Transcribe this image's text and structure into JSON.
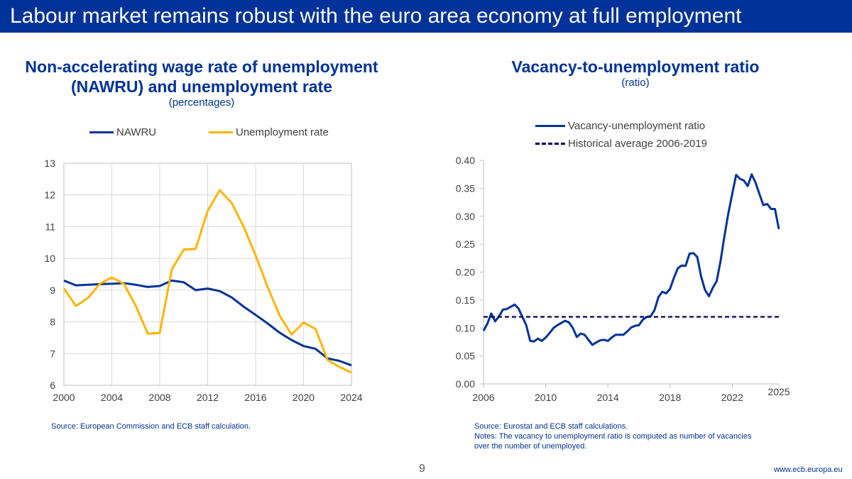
{
  "slide": {
    "title": "Labour market remains robust with the euro area economy at full employment",
    "page_number": "9",
    "url": "www.ecb.europa.eu",
    "brand_color": "#003299"
  },
  "left_chart": {
    "title_line1": "Non-accelerating wage rate of unemployment",
    "title_line2": "(NAWRU) and unemployment rate",
    "subtitle": "(percentages)",
    "source": "Source: European Commission and ECB staff calculation."
  },
  "right_chart": {
    "title": "Vacancy-to-unemployment ratio",
    "subtitle": "(ratio)",
    "source": "Source: Eurostat and ECB staff calculations.",
    "notes_line1": "Notes: The vacancy to unemployment ratio is computed as number of vacancies",
    "notes_line2": "over the number of unemployed."
  },
  "chart_data": [
    {
      "type": "line",
      "title": "Non-accelerating wage rate of unemployment (NAWRU) and unemployment rate",
      "subtitle": "(percentages)",
      "xlabel": "",
      "ylabel": "",
      "xlim": [
        2000,
        2024
      ],
      "ylim": [
        6,
        13
      ],
      "x_ticks": [
        "2000",
        "2004",
        "2008",
        "2012",
        "2016",
        "2020",
        "2024"
      ],
      "y_ticks": [
        "6",
        "7",
        "8",
        "9",
        "10",
        "11",
        "12",
        "13"
      ],
      "grid": true,
      "legend": "top",
      "x": [
        2000,
        2001,
        2002,
        2003,
        2004,
        2005,
        2006,
        2007,
        2008,
        2009,
        2010,
        2011,
        2012,
        2013,
        2014,
        2015,
        2016,
        2017,
        2018,
        2019,
        2020,
        2021,
        2022,
        2023,
        2024
      ],
      "series": [
        {
          "name": "NAWRU",
          "color": "#003299",
          "values": [
            9.3,
            9.15,
            9.17,
            9.19,
            9.2,
            9.22,
            9.17,
            9.1,
            9.13,
            9.3,
            9.25,
            9.0,
            9.05,
            8.97,
            8.77,
            8.48,
            8.22,
            7.95,
            7.66,
            7.43,
            7.24,
            7.15,
            6.85,
            6.77,
            6.63
          ]
        },
        {
          "name": "Unemployment rate",
          "color": "#FFB400",
          "values": [
            9.05,
            8.5,
            8.75,
            9.2,
            9.4,
            9.2,
            8.5,
            7.63,
            7.65,
            9.65,
            10.28,
            10.3,
            11.5,
            12.15,
            11.75,
            11.0,
            10.1,
            9.1,
            8.2,
            7.6,
            7.98,
            7.78,
            6.8,
            6.58,
            6.4
          ]
        }
      ]
    },
    {
      "type": "line",
      "title": "Vacancy-to-unemployment ratio",
      "subtitle": "(ratio)",
      "xlabel": "",
      "ylabel": "",
      "xlim": [
        2006,
        2025
      ],
      "ylim": [
        0.0,
        0.4
      ],
      "x_ticks": [
        "2006",
        "2010",
        "2014",
        "2018",
        "2022",
        "2025"
      ],
      "y_ticks": [
        "0.00",
        "0.05",
        "0.10",
        "0.15",
        "0.20",
        "0.25",
        "0.30",
        "0.35",
        "0.40"
      ],
      "grid": false,
      "legend": "top",
      "series": [
        {
          "name": "Vacancy-unemployment ratio",
          "color": "#003299",
          "style": "solid",
          "x": [
            2006.0,
            2006.25,
            2006.5,
            2006.75,
            2007.0,
            2007.25,
            2007.5,
            2007.75,
            2008.0,
            2008.25,
            2008.5,
            2008.75,
            2009.0,
            2009.25,
            2009.5,
            2009.75,
            2010.0,
            2010.25,
            2010.5,
            2010.75,
            2011.0,
            2011.25,
            2011.5,
            2011.75,
            2012.0,
            2012.25,
            2012.5,
            2012.75,
            2013.0,
            2013.25,
            2013.5,
            2013.75,
            2014.0,
            2014.25,
            2014.5,
            2014.75,
            2015.0,
            2015.25,
            2015.5,
            2015.75,
            2016.0,
            2016.25,
            2016.5,
            2016.75,
            2017.0,
            2017.25,
            2017.5,
            2017.75,
            2018.0,
            2018.25,
            2018.5,
            2018.75,
            2019.0,
            2019.25,
            2019.5,
            2019.75,
            2020.0,
            2020.25,
            2020.5,
            2020.75,
            2021.0,
            2021.25,
            2021.5,
            2021.75,
            2022.0,
            2022.25,
            2022.5,
            2022.75,
            2023.0,
            2023.25,
            2023.5,
            2023.75,
            2024.0,
            2024.25,
            2024.5,
            2024.75,
            2025.0
          ],
          "values": [
            0.095,
            0.108,
            0.126,
            0.112,
            0.121,
            0.133,
            0.134,
            0.138,
            0.142,
            0.135,
            0.12,
            0.105,
            0.077,
            0.076,
            0.081,
            0.077,
            0.083,
            0.091,
            0.1,
            0.105,
            0.109,
            0.113,
            0.11,
            0.1,
            0.084,
            0.09,
            0.088,
            0.079,
            0.07,
            0.074,
            0.078,
            0.079,
            0.077,
            0.083,
            0.088,
            0.088,
            0.088,
            0.094,
            0.101,
            0.104,
            0.105,
            0.115,
            0.12,
            0.121,
            0.132,
            0.155,
            0.165,
            0.162,
            0.17,
            0.19,
            0.207,
            0.212,
            0.211,
            0.233,
            0.234,
            0.227,
            0.192,
            0.168,
            0.157,
            0.172,
            0.184,
            0.22,
            0.265,
            0.305,
            0.34,
            0.374,
            0.367,
            0.364,
            0.354,
            0.375,
            0.36,
            0.34,
            0.32,
            0.322,
            0.313,
            0.313,
            0.277
          ]
        },
        {
          "name": "Historical average 2006-2019",
          "color": "#000066",
          "style": "dashed",
          "x": [
            2006,
            2025
          ],
          "values": [
            0.12,
            0.12
          ]
        }
      ]
    }
  ]
}
